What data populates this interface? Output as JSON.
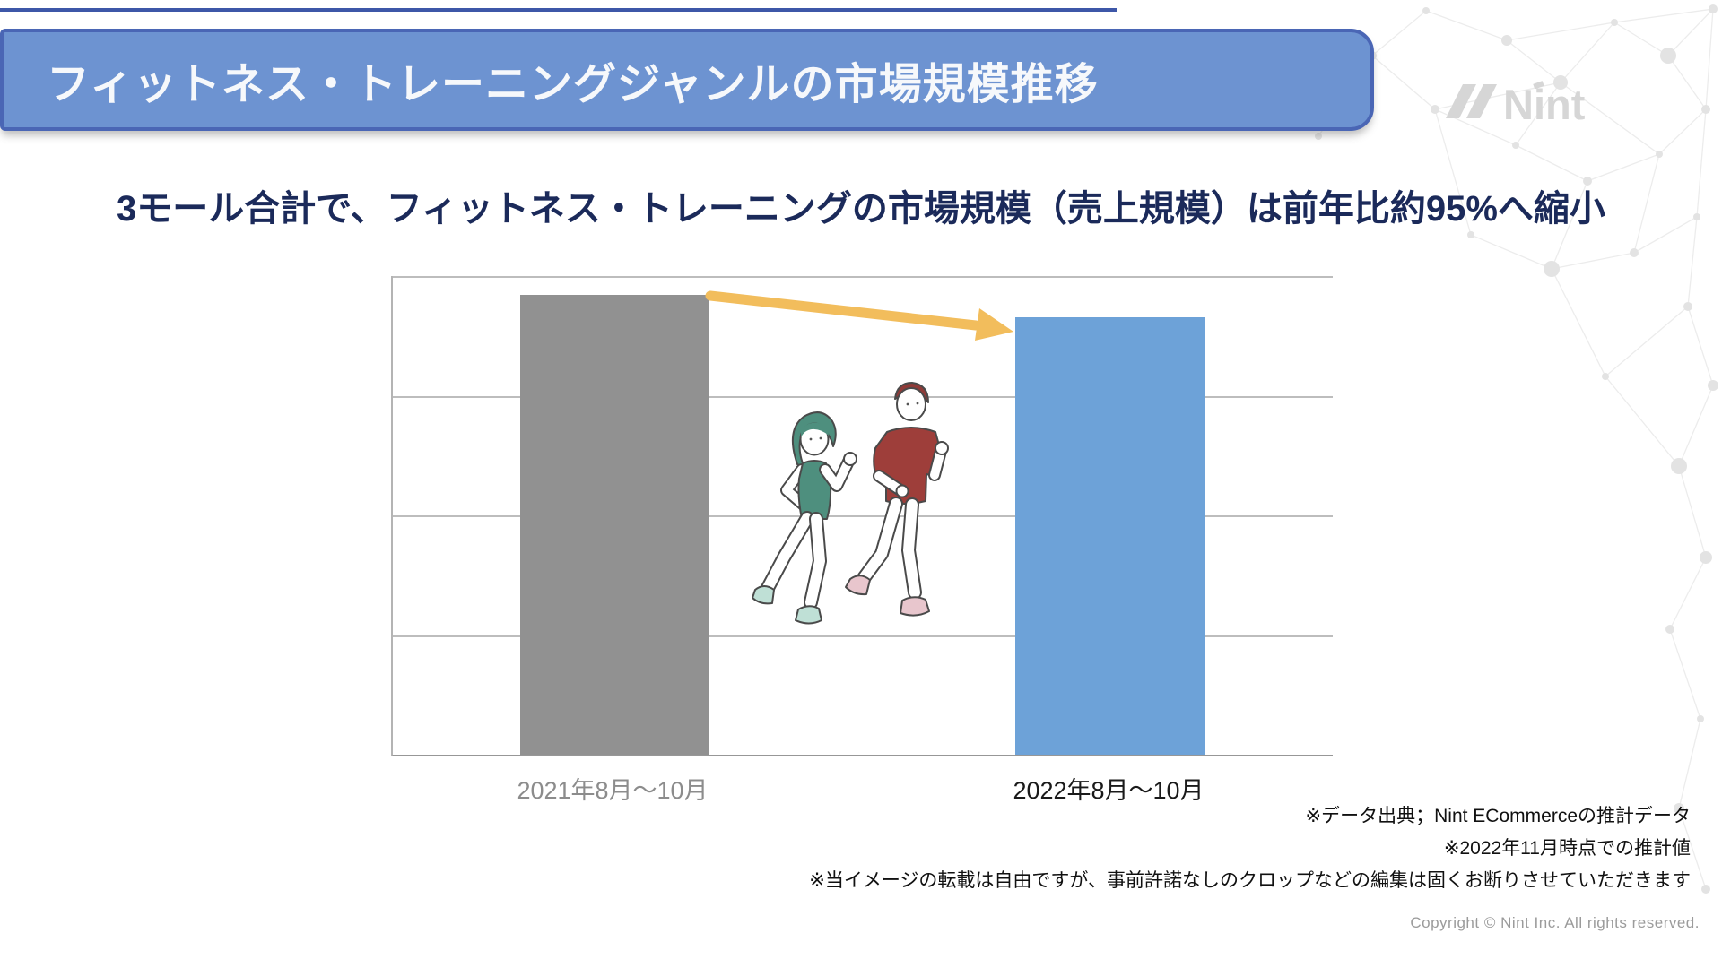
{
  "header": {
    "title": "フィットネス・トレーニングジャンルの市場規模推移",
    "banner_fill": "#6D93D1",
    "banner_border": "#4A66B5",
    "top_rule_color": "#3D57A8"
  },
  "logo": {
    "brand": "Nint"
  },
  "subtitle": "3モール合計で、フィットネス・トレーニングの市場規模（売上規模）は前年比約95%へ縮小",
  "chart_data": {
    "type": "bar",
    "title": "",
    "xlabel": "",
    "ylabel": "",
    "categories": [
      "2021年8月〜10月",
      "2022年8月〜10月"
    ],
    "values": [
      100,
      95
    ],
    "value_unit": "前年(2021年8月〜10月)を100とした相対値・約95%へ縮小",
    "ylim": [
      0,
      104
    ],
    "axis_value_labels_shown": false,
    "gridline_count": 4,
    "grid": true,
    "legend": false,
    "bar_colors": [
      "#919191",
      "#6DA2D8"
    ],
    "category_label_colors": [
      "#8C8C8C",
      "#1A1A1A"
    ],
    "annotation_arrow_color": "#F2BD5C"
  },
  "illustration": {
    "description": "ジョギングする2人のイラスト"
  },
  "footnotes": [
    "※データ出典；Nint ECommerceの推計データ",
    "※2022年11月時点での推計値",
    "※当イメージの転載は自由ですが、事前許諾なしのクロップなどの編集は固くお断りさせていただきます"
  ],
  "copyright": "Copyright © Nint Inc. All rights reserved."
}
